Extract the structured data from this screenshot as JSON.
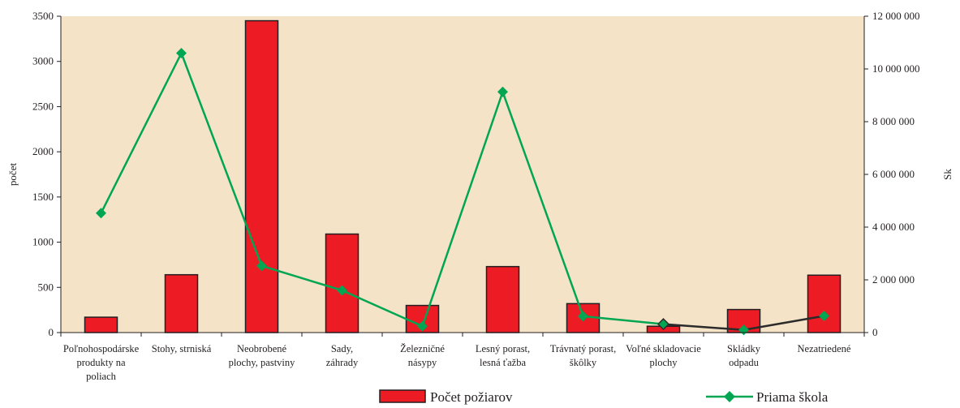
{
  "chart_data": {
    "type": "bar+line",
    "categories": [
      [
        "Poľnohospodárske",
        "produkty na",
        "poliach"
      ],
      [
        "Stohy, strniská"
      ],
      [
        "Neobrobené",
        "plochy, pastviny"
      ],
      [
        "Sady,",
        "záhrady"
      ],
      [
        "Železničné",
        "násypy"
      ],
      [
        "Lesný porast,",
        "lesná ťažba"
      ],
      [
        "Trávnatý porast,",
        "škôlky"
      ],
      [
        "Voľné skladovacie",
        "plochy"
      ],
      [
        "Skládky",
        "odpadu"
      ],
      [
        "Nezatriedené"
      ]
    ],
    "series": [
      {
        "name": "Počet požiarov",
        "type": "bar",
        "axis": "left",
        "color": "#ed1c24",
        "values": [
          170,
          640,
          3450,
          1090,
          300,
          730,
          320,
          70,
          255,
          635
        ]
      },
      {
        "name": "Priama škola",
        "type": "line",
        "axis": "right",
        "color": "#00a651",
        "values": [
          4530000,
          10600000,
          2530000,
          1600000,
          240000,
          9130000,
          620000,
          320000,
          100000,
          630000
        ]
      }
    ],
    "ylabel": "počet",
    "y2label": "Sk",
    "ylim": [
      0,
      3500
    ],
    "y2lim": [
      0,
      12000000
    ],
    "yticks": [
      "0",
      "500",
      "1000",
      "1500",
      "2000",
      "2500",
      "3000",
      "3500"
    ],
    "y2ticks": [
      "0",
      "2 000 000",
      "4 000 000",
      "6 000 000",
      "8 000 000",
      "10 000 000",
      "12 000 000"
    ],
    "plot_background": "#f5e3c8",
    "line_dark_segment_color": "#2b2b2b",
    "legend_position": "bottom"
  }
}
